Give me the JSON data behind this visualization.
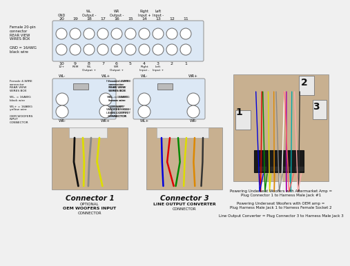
{
  "bg_color": "#f0f0f0",
  "connector_box_color": "#dce8f5",
  "connector_box_edge": "#999999",
  "circle_edge": "#666666",
  "circle_fill": "#ffffff",
  "text_color": "#111111",
  "nums_above": [
    20,
    19,
    18,
    17,
    16,
    15,
    14,
    13,
    12,
    11
  ],
  "labels_above": {
    "20": "GND",
    "18": "WL\nOutput -",
    "16": "WR\nOutput -",
    "14": "Right\nInput +",
    "13": "Left\nInput -"
  },
  "nums_below": [
    10,
    9,
    8,
    7,
    6,
    5,
    4,
    3,
    2,
    1
  ],
  "labels_below": {
    "10": "12+",
    "9": "REM",
    "8": "WL\nOutput +",
    "6": "WR\nOutput +",
    "4": "Right\nInput -",
    "3": "Left\nInput +"
  },
  "left_label_20pin": "Female 20-pin\nconnector\nREAR VIEW\nWIRES BOX",
  "left_label_gnd": "GND = 16AWG\nblack wire",
  "left_label_4wire_1": "Female 4-WIRE\nconnector\nREAR VIEW\nWIRES BOX\n\nWL- = 16AWG\nblack wire\n\nWL+ = 16AWG\nyellow wire\n\nOEM WOOFERS\nINPUT\nCONNECTOR",
  "left_label_4wire_2": "Female 4-WIRE\nconnector\nREAR VIEW\nWIRES BOX\n\nWL- = 16AWG\nbrown wire\n\nOEM AMP\nWOOFER HIGH\nLEVEL OUTPUT\nCONNECTOR",
  "connector1_title": "Connector 1",
  "connector1_sub1": "OPTIONAL",
  "connector1_sub2": "OEM WOOFERS INPUT",
  "connector1_sub3": "CONNECTOR",
  "connector3_title": "Connector 3",
  "connector3_sub1": "LINE OUTPUT CONVERTER",
  "connector3_sub2": "CONNECTOR",
  "note1": "Powering Underseat Woofers with Aftermarket Amp =\nPlug Connector 1 to Harness Male Jack #1",
  "note2": "Powering Underseat Woofers with OEM amp =\nPlug Harness Male Jack 1 to Harness Female Socket 2",
  "note3": "Line Output Converter = Plug Connector 3 to Harness Male Jack 3",
  "photo_bg": "#c8b090",
  "photo_bg2": "#c8a878",
  "wire_colors_1": [
    "#111111",
    "#dddd00",
    "#888888",
    "#dddd00"
  ],
  "wire_colors_3": [
    "#0000dd",
    "#dd0000",
    "#008800",
    "#dddd00",
    "#dd8800",
    "#333333"
  ],
  "wire_colors_r": [
    "#dd0000",
    "#0000dd",
    "#008800",
    "#dddd00",
    "#dd8800",
    "#ffffff",
    "#888888",
    "#aa00aa",
    "#00aaaa",
    "#ff6666",
    "#333333",
    "#ffaaaa"
  ]
}
